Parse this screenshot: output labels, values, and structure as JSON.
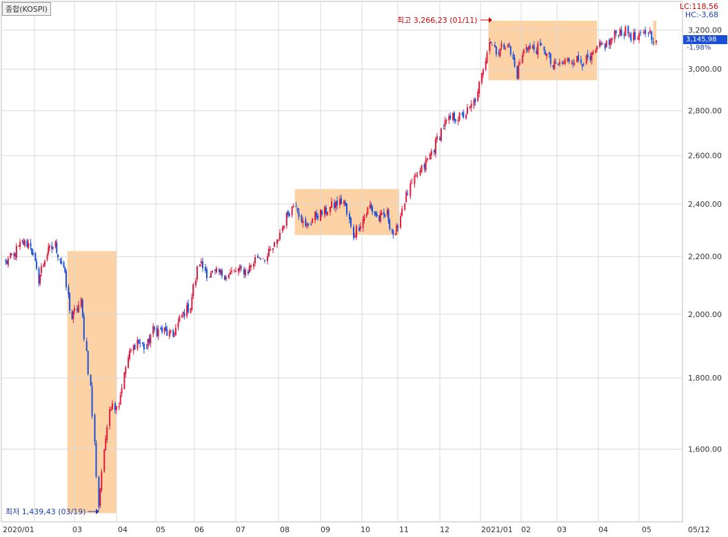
{
  "legend": {
    "label": "종합(KOSPI)"
  },
  "header_right": {
    "lc": "LC:118,56",
    "hc": "HC:-3,68"
  },
  "last": {
    "price_label": "3,145,98",
    "change_label": "-1,98%"
  },
  "annotations": {
    "high_label": "최고 3,266,23 (01/11)",
    "low_label": "최저 1,439,43 (03/19)"
  },
  "colors": {
    "up": "#e0183a",
    "down": "#1c4fd8",
    "highlight": "#fdd3a6",
    "grid": "#d8d8d8",
    "high_text": "#d00000",
    "low_text": "#1c3fb0"
  },
  "chart_data": {
    "type": "candlestick",
    "title": "종합(KOSPI)",
    "y_scale": "log",
    "ylim": [
      1400,
      3300
    ],
    "y_ticks": [
      1600,
      1800,
      2000,
      2200,
      2400,
      2600,
      2800,
      3000,
      3200
    ],
    "y_tick_labels": [
      "1,600.00",
      "1,800.00",
      "2,000.00",
      "2,200.00",
      "2,400.00",
      "2,600.00",
      "2,800.00",
      "3,000.00",
      "3,200.00"
    ],
    "x_labels": [
      "2020/01",
      "03",
      "04",
      "05",
      "06",
      "07",
      "08",
      "09",
      "10",
      "11",
      "12",
      "2021/01",
      "02",
      "03",
      "04",
      "05",
      "05/12"
    ],
    "high": {
      "value": 3266.23,
      "date": "01/11"
    },
    "low": {
      "value": 1439.43,
      "date": "03/19"
    },
    "last_value": 3145.98,
    "change_pct": -1.98,
    "highlight_ranges": [
      {
        "from": "2020/02/24",
        "to": "2020/04/01",
        "y": [
          1439,
          2220
        ]
      },
      {
        "from": "2020/08/13",
        "to": "2020/11/02",
        "y": [
          2280,
          2460
        ]
      },
      {
        "from": "2021/01/07",
        "to": "2021/03/31",
        "y": [
          2945,
          3250
        ]
      },
      {
        "from": "2021/05/10",
        "to": "2021/05/12",
        "y": [
          3120,
          3250
        ]
      }
    ],
    "closes_weekly": [
      {
        "date": "2020/01/03",
        "value": 2176
      },
      {
        "date": "2020/01/10",
        "value": 2206
      },
      {
        "date": "2020/01/17",
        "value": 2250
      },
      {
        "date": "2020/01/24",
        "value": 2246
      },
      {
        "date": "2020/01/31",
        "value": 2119
      },
      {
        "date": "2020/02/07",
        "value": 2212
      },
      {
        "date": "2020/02/14",
        "value": 2243
      },
      {
        "date": "2020/02/21",
        "value": 2162
      },
      {
        "date": "2020/02/28",
        "value": 1987
      },
      {
        "date": "2020/03/06",
        "value": 2040
      },
      {
        "date": "2020/03/13",
        "value": 1771
      },
      {
        "date": "2020/03/19",
        "value": 1457
      },
      {
        "date": "2020/03/27",
        "value": 1717
      },
      {
        "date": "2020/04/03",
        "value": 1725
      },
      {
        "date": "2020/04/10",
        "value": 1860
      },
      {
        "date": "2020/04/17",
        "value": 1914
      },
      {
        "date": "2020/04/24",
        "value": 1889
      },
      {
        "date": "2020/04/29",
        "value": 1947
      },
      {
        "date": "2020/05/08",
        "value": 1945
      },
      {
        "date": "2020/05/15",
        "value": 1927
      },
      {
        "date": "2020/05/22",
        "value": 1994
      },
      {
        "date": "2020/05/29",
        "value": 2029
      },
      {
        "date": "2020/06/05",
        "value": 2181
      },
      {
        "date": "2020/06/12",
        "value": 2132
      },
      {
        "date": "2020/06/19",
        "value": 2141
      },
      {
        "date": "2020/06/26",
        "value": 2134
      },
      {
        "date": "2020/07/03",
        "value": 2152
      },
      {
        "date": "2020/07/10",
        "value": 2150
      },
      {
        "date": "2020/07/17",
        "value": 2201
      },
      {
        "date": "2020/07/24",
        "value": 2200
      },
      {
        "date": "2020/07/31",
        "value": 2249
      },
      {
        "date": "2020/08/07",
        "value": 2351
      },
      {
        "date": "2020/08/14",
        "value": 2407
      },
      {
        "date": "2020/08/21",
        "value": 2304
      },
      {
        "date": "2020/08/28",
        "value": 2353
      },
      {
        "date": "2020/09/04",
        "value": 2368
      },
      {
        "date": "2020/09/11",
        "value": 2396
      },
      {
        "date": "2020/09/18",
        "value": 2412
      },
      {
        "date": "2020/09/25",
        "value": 2278
      },
      {
        "date": "2020/10/08",
        "value": 2391
      },
      {
        "date": "2020/10/16",
        "value": 2341
      },
      {
        "date": "2020/10/23",
        "value": 2360
      },
      {
        "date": "2020/10/30",
        "value": 2267
      },
      {
        "date": "2020/11/06",
        "value": 2416
      },
      {
        "date": "2020/11/13",
        "value": 2493
      },
      {
        "date": "2020/11/20",
        "value": 2553
      },
      {
        "date": "2020/11/27",
        "value": 2633
      },
      {
        "date": "2020/12/04",
        "value": 2731
      },
      {
        "date": "2020/12/11",
        "value": 2770
      },
      {
        "date": "2020/12/18",
        "value": 2772
      },
      {
        "date": "2020/12/24",
        "value": 2806
      },
      {
        "date": "2020/12/30",
        "value": 2873
      },
      {
        "date": "2021/01/08",
        "value": 3152
      },
      {
        "date": "2021/01/15",
        "value": 3085
      },
      {
        "date": "2021/01/22",
        "value": 3140
      },
      {
        "date": "2021/01/29",
        "value": 2976
      },
      {
        "date": "2021/02/05",
        "value": 3120
      },
      {
        "date": "2021/02/10",
        "value": 3100
      },
      {
        "date": "2021/02/19",
        "value": 3107
      },
      {
        "date": "2021/02/26",
        "value": 3012
      },
      {
        "date": "2021/03/05",
        "value": 3026
      },
      {
        "date": "2021/03/12",
        "value": 3054
      },
      {
        "date": "2021/03/19",
        "value": 3039
      },
      {
        "date": "2021/03/26",
        "value": 3041
      },
      {
        "date": "2021/04/02",
        "value": 3112
      },
      {
        "date": "2021/04/09",
        "value": 3131
      },
      {
        "date": "2021/04/16",
        "value": 3198
      },
      {
        "date": "2021/04/23",
        "value": 3186
      },
      {
        "date": "2021/04/30",
        "value": 3147
      },
      {
        "date": "2021/05/07",
        "value": 3197
      },
      {
        "date": "2021/05/12",
        "value": 3146
      }
    ]
  }
}
